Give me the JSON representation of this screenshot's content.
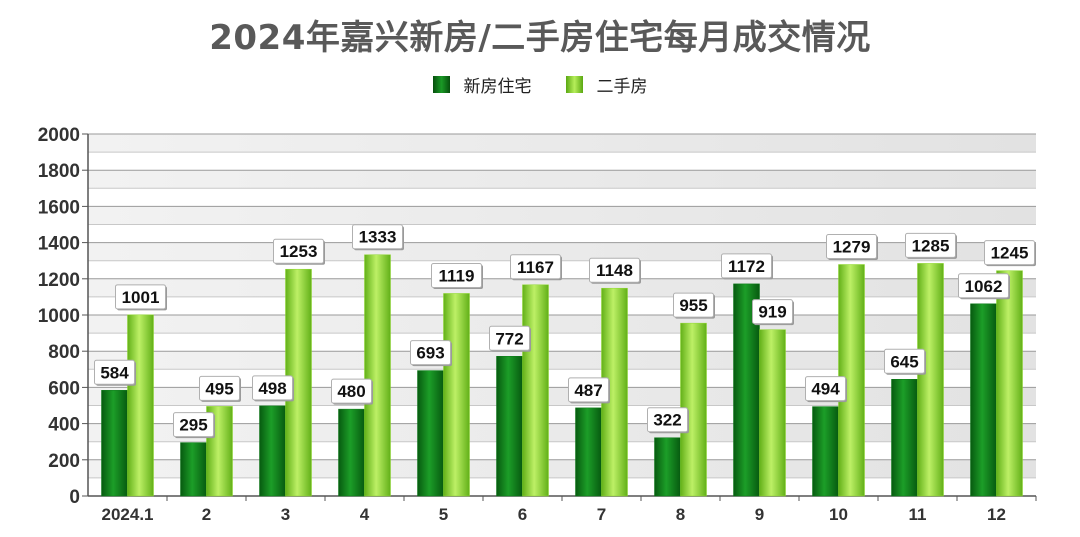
{
  "chart_data": {
    "type": "bar",
    "title": "2024年嘉兴新房/二手房住宅每月成交情况",
    "categories": [
      "2024.1",
      "2",
      "3",
      "4",
      "5",
      "6",
      "7",
      "8",
      "9",
      "10",
      "11",
      "12"
    ],
    "series": [
      {
        "name": "新房住宅",
        "values": [
          584,
          295,
          498,
          480,
          693,
          772,
          487,
          322,
          1172,
          494,
          645,
          1062
        ],
        "color": "#0a7a16"
      },
      {
        "name": "二手房",
        "values": [
          1001,
          495,
          1253,
          1333,
          1119,
          1167,
          1148,
          955,
          919,
          1279,
          1285,
          1245
        ],
        "color": "#8fd72e"
      }
    ],
    "ylim": [
      0,
      2000
    ],
    "yticks": [
      0,
      200,
      400,
      600,
      800,
      1000,
      1200,
      1400,
      1600,
      1800,
      2000
    ],
    "grid": true,
    "legend_position": "top"
  },
  "colors": {
    "new_house": "#0a7a16",
    "second_hand": "#8fd72e",
    "title": "#595959"
  }
}
